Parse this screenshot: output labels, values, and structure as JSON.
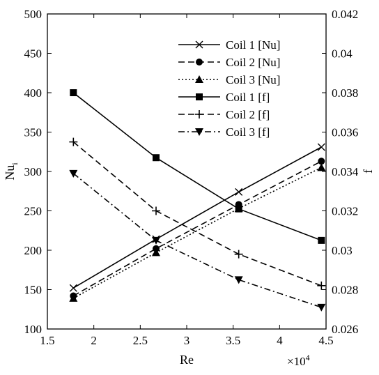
{
  "chart_data": {
    "type": "line",
    "xlabel": "Re",
    "x_multiplier_label": "×10",
    "x_multiplier_exponent": "4",
    "ylabel_left": "Nu",
    "ylabel_left_subscript": "i",
    "ylabel_right": "f",
    "xlim": [
      1.5,
      4.5
    ],
    "ylim_left": [
      100,
      500
    ],
    "ylim_right": [
      0.026,
      0.042
    ],
    "x_ticks": [
      "1.5",
      "2",
      "2.5",
      "3",
      "3.5",
      "4",
      "4.5"
    ],
    "y_left_ticks": [
      "100",
      "150",
      "200",
      "250",
      "300",
      "350",
      "400",
      "450",
      "500"
    ],
    "y_right_ticks": [
      "0.026",
      "0.028",
      "0.03",
      "0.032",
      "0.034",
      "0.036",
      "0.038",
      "0.04",
      "0.042"
    ],
    "grid": false,
    "legend_position": "top-right",
    "x": [
      1.78,
      2.67,
      3.56,
      4.45
    ],
    "series": [
      {
        "name": "Coil 1 [Nu]",
        "axis": "left",
        "values": [
          152,
          214,
          274,
          331
        ],
        "line_style": "solid",
        "marker": "x"
      },
      {
        "name": "Coil 2 [Nu]",
        "axis": "left",
        "values": [
          142,
          202,
          258,
          313
        ],
        "line_style": "dashed",
        "marker": "circle"
      },
      {
        "name": "Coil 3 [Nu]",
        "axis": "left",
        "values": [
          139,
          197,
          253,
          305
        ],
        "line_style": "dotted",
        "marker": "triangle-up"
      },
      {
        "name": "Coil 1 [f]",
        "axis": "right",
        "values": [
          0.038,
          0.0347,
          0.0321,
          0.0305
        ],
        "line_style": "solid",
        "marker": "square"
      },
      {
        "name": "Coil 2 [f]",
        "axis": "right",
        "values": [
          0.0355,
          0.032,
          0.0298,
          0.0282
        ],
        "line_style": "dashed",
        "marker": "plus"
      },
      {
        "name": "Coil 3 [f]",
        "axis": "right",
        "values": [
          0.0339,
          0.0305,
          0.0285,
          0.0271
        ],
        "line_style": "dash-dot",
        "marker": "triangle-down"
      }
    ]
  }
}
